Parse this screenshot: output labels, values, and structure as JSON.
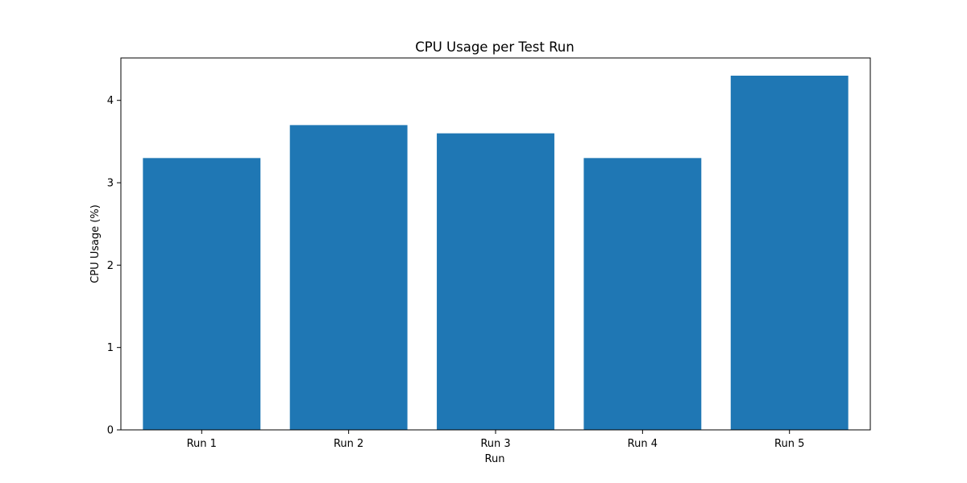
{
  "chart_data": {
    "type": "bar",
    "title": "CPU Usage per Test Run",
    "xlabel": "Run",
    "ylabel": "CPU Usage (%)",
    "categories": [
      "Run 1",
      "Run 2",
      "Run 3",
      "Run 4",
      "Run 5"
    ],
    "values": [
      3.3,
      3.7,
      3.6,
      3.3,
      4.3
    ],
    "ylim": [
      0,
      4.515
    ],
    "yticks": [
      0,
      1,
      2,
      3,
      4
    ],
    "grid": false,
    "legend": "none",
    "bar_color": "#1f77b4"
  }
}
